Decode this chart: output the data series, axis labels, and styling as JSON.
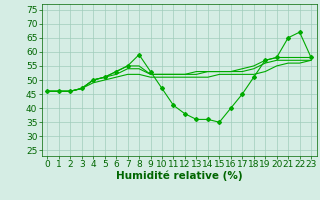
{
  "xlabel": "Humidité relative (%)",
  "xlim": [
    -0.5,
    23.5
  ],
  "ylim": [
    23,
    77
  ],
  "yticks": [
    25,
    30,
    35,
    40,
    45,
    50,
    55,
    60,
    65,
    70,
    75
  ],
  "xticks": [
    0,
    1,
    2,
    3,
    4,
    5,
    6,
    7,
    8,
    9,
    10,
    11,
    12,
    13,
    14,
    15,
    16,
    17,
    18,
    19,
    20,
    21,
    22,
    23
  ],
  "bg_color": "#d5ede4",
  "grid_color": "#a0ccbb",
  "line_color": "#00aa00",
  "series_main": [
    46,
    46,
    46,
    47,
    50,
    51,
    53,
    55,
    59,
    53,
    47,
    41,
    38,
    36,
    36,
    35,
    40,
    45,
    51,
    57,
    58,
    65,
    67,
    58
  ],
  "series_smooth": [
    [
      46,
      46,
      46,
      47,
      50,
      51,
      53,
      55,
      55,
      52,
      52,
      52,
      52,
      53,
      53,
      53,
      53,
      54,
      55,
      57,
      58,
      58,
      58,
      58
    ],
    [
      46,
      46,
      46,
      47,
      50,
      51,
      52,
      54,
      54,
      52,
      52,
      52,
      52,
      52,
      53,
      53,
      53,
      53,
      54,
      56,
      57,
      57,
      57,
      57
    ],
    [
      46,
      46,
      46,
      47,
      49,
      50,
      51,
      52,
      52,
      51,
      51,
      51,
      51,
      51,
      51,
      52,
      52,
      52,
      52,
      53,
      55,
      56,
      56,
      57
    ]
  ],
  "tick_fontsize": 6.5,
  "xlabel_fontsize": 7.5
}
